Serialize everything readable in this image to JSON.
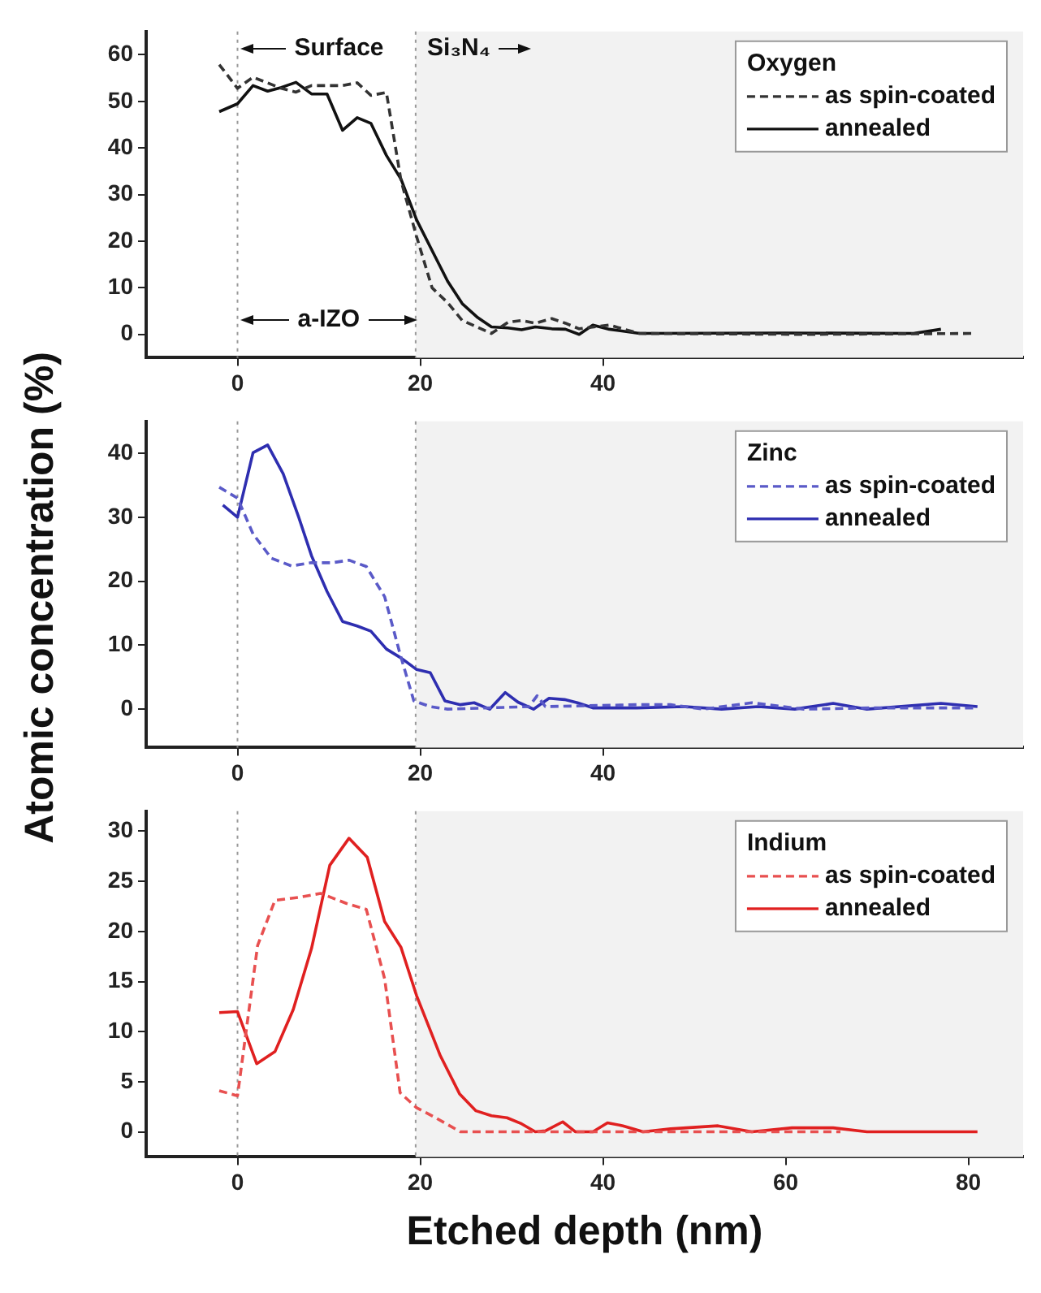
{
  "chart_data": [
    {
      "type": "line",
      "legend_title": "Oxygen",
      "legend": "top right",
      "xlim": [
        -10,
        86
      ],
      "xticks": [
        0,
        20,
        40
      ],
      "ylim": [
        -5,
        65
      ],
      "yticks": [
        0,
        10,
        20,
        30,
        40,
        50,
        60
      ],
      "ref_lines": [
        {
          "axis": "x",
          "value": 0,
          "color": "#999999",
          "line_style": "dotted"
        },
        {
          "axis": "x",
          "value": 19.5,
          "color": "#999999",
          "line_style": "dotted"
        }
      ],
      "bands": [
        {
          "axis": "x",
          "from": 19.5,
          "to": 86,
          "color": "#f2f2f2"
        }
      ],
      "annotations": [
        "Surface",
        "Si₃N₄",
        "a-IZO"
      ],
      "series": [
        {
          "name": "as spin-coated",
          "color": "#333333",
          "line_style": "dashed",
          "x": [
            -2,
            0,
            1.7,
            4.8,
            6.4,
            8.1,
            9.8,
            11.5,
            13.1,
            14.6,
            16.3,
            17.9,
            19.6,
            21.3,
            23,
            24.6,
            27.8,
            29.6,
            31.1,
            32.6,
            34.4,
            35.9,
            37.4,
            40.7,
            44,
            62,
            80.4
          ],
          "values": [
            57.9,
            52.8,
            55.2,
            52.8,
            52,
            53.4,
            53.4,
            53.4,
            54,
            51.3,
            51.9,
            33,
            21,
            10,
            6.8,
            3,
            0.2,
            2.6,
            3,
            2.4,
            3.4,
            2.4,
            1.2,
            2,
            0.2,
            0,
            0.2
          ]
        },
        {
          "name": "annealed",
          "color": "#111111",
          "line_style": "solid",
          "x": [
            -2,
            0,
            1.7,
            3.3,
            4.8,
            6.4,
            8.1,
            9.8,
            11.5,
            13.1,
            14.6,
            16.3,
            17.9,
            19.6,
            21.3,
            23,
            24.6,
            26.3,
            27.8,
            29.6,
            31.1,
            32.6,
            34.4,
            35.9,
            37.4,
            38.9,
            40.7,
            44,
            60,
            74,
            77
          ],
          "values": [
            47.8,
            49.5,
            53.4,
            52.2,
            53,
            54.1,
            51.6,
            51.6,
            43.8,
            46.5,
            45.3,
            38.4,
            33.3,
            24.6,
            18,
            11.4,
            6.6,
            3.6,
            1.6,
            1.4,
            1,
            1.6,
            1.2,
            1.1,
            0,
            2,
            1.1,
            0.2,
            0.3,
            0.2,
            1.1
          ]
        }
      ]
    },
    {
      "type": "line",
      "legend_title": "Zinc",
      "legend": "top right",
      "ylabel": "Atomic concentration (%)",
      "xlim": [
        -10,
        86
      ],
      "xticks": [
        0,
        20,
        40
      ],
      "ylim": [
        -6,
        45
      ],
      "yticks": [
        0,
        10,
        20,
        30,
        40
      ],
      "ref_lines": [
        {
          "axis": "x",
          "value": 0,
          "color": "#999999",
          "line_style": "dotted"
        },
        {
          "axis": "x",
          "value": 19.5,
          "color": "#999999",
          "line_style": "dotted"
        }
      ],
      "bands": [
        {
          "axis": "x",
          "from": 19.5,
          "to": 86,
          "color": "#f2f2f2"
        }
      ],
      "series": [
        {
          "name": "as spin-coated",
          "color": "#5a5ac8",
          "line_style": "dashed",
          "x": [
            -2,
            0,
            1.7,
            3.7,
            5.9,
            8.1,
            10.4,
            12.2,
            14.1,
            16.1,
            17.8,
            19.3,
            21.1,
            23,
            31.9,
            32.8,
            33.7,
            43.7,
            47.4,
            51,
            56.3,
            62,
            69.6,
            81
          ],
          "values": [
            34.7,
            33,
            27.4,
            23.6,
            22.4,
            22.9,
            22.9,
            23.3,
            22.3,
            17.6,
            8.6,
            1.3,
            0.4,
            0,
            0.4,
            2.1,
            0.4,
            0.7,
            0.7,
            0,
            1,
            0,
            0.2,
            0.2
          ]
        },
        {
          "name": "annealed",
          "color": "#2e2eb0",
          "line_style": "solid",
          "x": [
            -1.6,
            0,
            1.7,
            3.3,
            5,
            6.7,
            8.1,
            9.8,
            11.5,
            13.1,
            14.6,
            16.3,
            17.9,
            19.6,
            21.1,
            22.7,
            24.4,
            25.9,
            27.6,
            29.3,
            30.7,
            32.4,
            34.1,
            35.8,
            37.2,
            38.9,
            43.7,
            48.9,
            53,
            57,
            61,
            65.2,
            68.9,
            77,
            81
          ],
          "values": [
            31.9,
            30,
            40.1,
            41.3,
            36.8,
            30,
            24,
            18.4,
            13.7,
            13,
            12.2,
            9.4,
            8,
            6.2,
            5.7,
            1.3,
            0.7,
            1,
            0,
            2.6,
            1.1,
            0,
            1.7,
            1.5,
            1,
            0.2,
            0.2,
            0.4,
            0,
            0.4,
            0,
            0.9,
            0,
            0.9,
            0.4
          ]
        }
      ]
    },
    {
      "type": "line",
      "legend_title": "Indium",
      "legend": "top right",
      "xlabel": "Etched depth (nm)",
      "xlim": [
        -10,
        86
      ],
      "xticks": [
        0,
        20,
        40,
        60,
        80
      ],
      "ylim": [
        -2.5,
        32
      ],
      "yticks": [
        0,
        5,
        10,
        15,
        20,
        25,
        30
      ],
      "ref_lines": [
        {
          "axis": "x",
          "value": 0,
          "color": "#999999",
          "line_style": "dotted"
        },
        {
          "axis": "x",
          "value": 19.5,
          "color": "#999999",
          "line_style": "dotted"
        }
      ],
      "bands": [
        {
          "axis": "x",
          "from": 19.5,
          "to": 86,
          "color": "#f2f2f2"
        }
      ],
      "series": [
        {
          "name": "as spin-coated",
          "color": "#e85050",
          "line_style": "dashed",
          "x": [
            -2,
            0,
            2.2,
            4.1,
            6.7,
            9.1,
            11.9,
            14.1,
            16.1,
            17.8,
            19.6,
            21.5,
            24.4,
            66
          ],
          "values": [
            4.1,
            3.6,
            18.6,
            23.1,
            23.4,
            23.8,
            22.8,
            22.2,
            15.3,
            3.9,
            2.4,
            1.5,
            0,
            0
          ]
        },
        {
          "name": "annealed",
          "color": "#e02020",
          "line_style": "solid",
          "x": [
            -2,
            0,
            2.1,
            4.1,
            6.1,
            8.1,
            10.1,
            12.2,
            14.2,
            16.1,
            17.9,
            19.6,
            22.2,
            24.3,
            26.1,
            27.8,
            29.5,
            31.1,
            32.6,
            33.7,
            35.6,
            37,
            38.9,
            40.5,
            42.2,
            44.4,
            47.4,
            52.6,
            56.3,
            60.7,
            65.2,
            68.9,
            77,
            81
          ],
          "values": [
            11.9,
            12,
            6.8,
            8,
            12.2,
            18.3,
            26.6,
            29.3,
            27.4,
            21,
            18.4,
            13.6,
            7.6,
            3.8,
            2.1,
            1.6,
            1.4,
            0.8,
            0,
            0.1,
            1,
            0,
            0,
            0.9,
            0.6,
            0,
            0.3,
            0.6,
            0,
            0.4,
            0.4,
            0,
            0,
            0
          ]
        }
      ]
    }
  ]
}
